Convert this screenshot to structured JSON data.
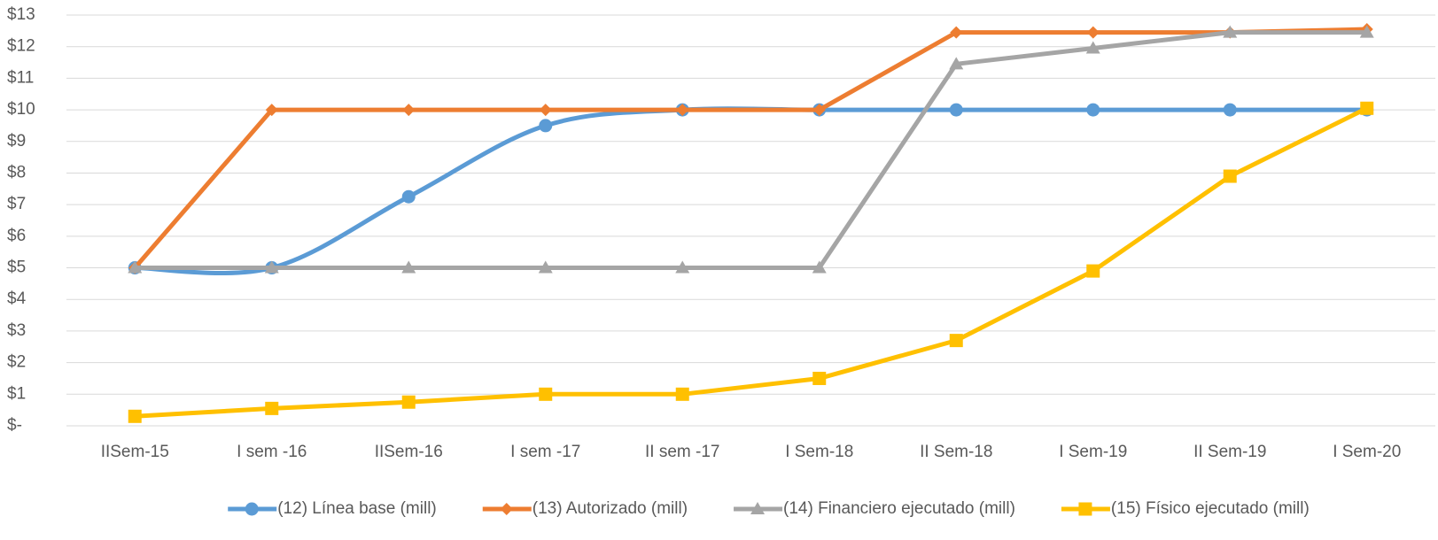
{
  "chart_data": {
    "type": "line",
    "categories": [
      "IISem-15",
      "I sem -16",
      "IISem-16",
      "I sem -17",
      "II sem -17",
      "I Sem-18",
      "II Sem-18",
      "I Sem-19",
      "II Sem-19",
      "I Sem-20"
    ],
    "series": [
      {
        "name": "(12) Línea base (mill)",
        "color": "#5b9bd5",
        "marker": "circle",
        "smooth": true,
        "values": [
          5,
          5,
          7.25,
          9.5,
          10,
          10,
          10,
          10,
          10,
          10
        ]
      },
      {
        "name": "(13) Autorizado (mill)",
        "color": "#ed7d31",
        "marker": "diamond",
        "values": [
          5,
          10,
          10,
          10,
          10,
          10,
          12.45,
          12.45,
          12.45,
          12.55
        ]
      },
      {
        "name": "(14) Financiero ejecutado (mill)",
        "color": "#a5a5a5",
        "marker": "triangle",
        "values": [
          5,
          5,
          5,
          5,
          5,
          5,
          11.45,
          11.95,
          12.45,
          12.45
        ]
      },
      {
        "name": "(15) Físico ejecutado (mill)",
        "color": "#ffc000",
        "marker": "square",
        "values": [
          0.3,
          0.55,
          0.75,
          1.0,
          1.0,
          1.5,
          2.7,
          4.9,
          7.9,
          10.05
        ]
      }
    ],
    "ylim": [
      0,
      13
    ],
    "yticks": [
      {
        "value": 0,
        "label": "$-"
      },
      {
        "value": 1,
        "label": "$1"
      },
      {
        "value": 2,
        "label": "$2"
      },
      {
        "value": 3,
        "label": "$3"
      },
      {
        "value": 4,
        "label": "$4"
      },
      {
        "value": 5,
        "label": "$5"
      },
      {
        "value": 6,
        "label": "$6"
      },
      {
        "value": 7,
        "label": "$7"
      },
      {
        "value": 8,
        "label": "$8"
      },
      {
        "value": 9,
        "label": "$9"
      },
      {
        "value": 10,
        "label": "$10"
      },
      {
        "value": 11,
        "label": "$11"
      },
      {
        "value": 12,
        "label": "$12"
      },
      {
        "value": 13,
        "label": "$13"
      }
    ],
    "grid": true,
    "legend": "bottom"
  }
}
